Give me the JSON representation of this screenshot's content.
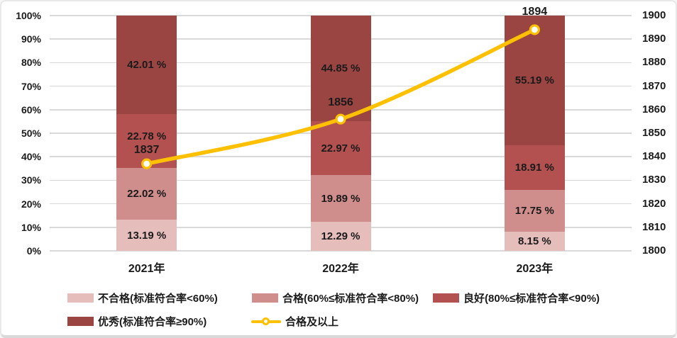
{
  "chart_data": {
    "type": "bar",
    "subtype": "stacked-bars-with-line",
    "title": "",
    "categories": [
      "2021年",
      "2022年",
      "2023年"
    ],
    "series": [
      {
        "name": "不合格(标准符合率<60%)",
        "type": "bar",
        "color": "#e5bdbb",
        "values": [
          13.19,
          12.29,
          8.15
        ],
        "labels": [
          "13.19 %",
          "12.29 %",
          "8.15 %"
        ]
      },
      {
        "name": "合格(60%≤标准符合率<80%)",
        "type": "bar",
        "color": "#cf8d8b",
        "values": [
          22.02,
          19.89,
          17.75
        ],
        "labels": [
          "22.02 %",
          "19.89 %",
          "17.75 %"
        ]
      },
      {
        "name": "良好(80%≤标准符合率<90%)",
        "type": "bar",
        "color": "#b35150",
        "values": [
          22.78,
          22.97,
          18.91
        ],
        "labels": [
          "22.78 %",
          "22.97 %",
          "18.91 %"
        ]
      },
      {
        "name": "优秀(标准符合率≥90%)",
        "type": "bar",
        "color": "#9b4543",
        "values": [
          42.01,
          44.85,
          55.19
        ],
        "labels": [
          "42.01 %",
          "44.85 %",
          "55.19 %"
        ]
      }
    ],
    "line_series": {
      "name": "合格及以上",
      "type": "line",
      "color": "#ffc000",
      "axis": "right",
      "marker": "circle-white-fill",
      "values": [
        1837,
        1856,
        1894
      ],
      "labels": [
        "1837",
        "1856",
        "1894"
      ]
    },
    "left_axis": {
      "ticks": [
        "100%",
        "90%",
        "80%",
        "70%",
        "60%",
        "50%",
        "40%",
        "30%",
        "20%",
        "10%",
        "0%"
      ],
      "min": 0,
      "max": 100
    },
    "right_axis": {
      "ticks": [
        "1900",
        "1890",
        "1880",
        "1870",
        "1860",
        "1850",
        "1840",
        "1830",
        "1820",
        "1810",
        "1800"
      ],
      "min": 1800,
      "max": 1900
    },
    "grid": true,
    "gridline_color": "#d9d9d9",
    "text_color": "#1a1a1a",
    "legend_position": "bottom",
    "legend_rows": [
      [
        "不合格(标准符合率<60%)",
        "合格(60%≤标准符合率<80%)",
        "良好(80%≤标准符合率<90%)"
      ],
      [
        "优秀(标准符合率≥90%)",
        "合格及以上"
      ]
    ]
  }
}
